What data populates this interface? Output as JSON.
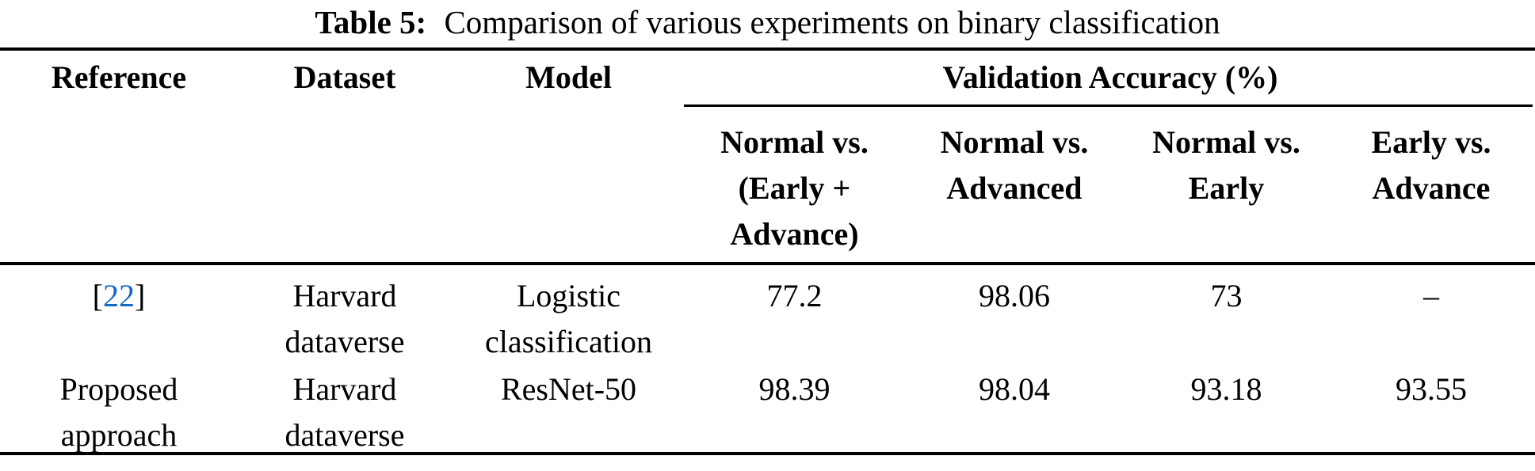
{
  "caption": {
    "label": "Table 5:",
    "text": "Comparison of various experiments on binary classification"
  },
  "table": {
    "columns": [
      "Reference",
      "Dataset",
      "Model"
    ],
    "group_header": "Validation Accuracy (%)",
    "subcolumns": [
      "Normal vs.\n(Early +\nAdvance)",
      "Normal vs.\nAdvanced",
      "Normal vs.\nEarly",
      "Early vs.\nAdvance"
    ],
    "rows": [
      {
        "citation_open": "[",
        "citation": "22",
        "citation_close": "]",
        "dataset": "Harvard\ndataverse",
        "model": "Logistic\nclassification",
        "values": [
          "77.2",
          "98.06",
          "73",
          "–"
        ]
      },
      {
        "reference": "Proposed\napproach",
        "dataset": "Harvard\ndataverse",
        "model": "ResNet-50",
        "values": [
          "98.39",
          "98.04",
          "93.18",
          "93.55"
        ]
      }
    ]
  },
  "colors": {
    "citation_link": "#1666C8",
    "text": "#000000",
    "rule": "#000000"
  }
}
